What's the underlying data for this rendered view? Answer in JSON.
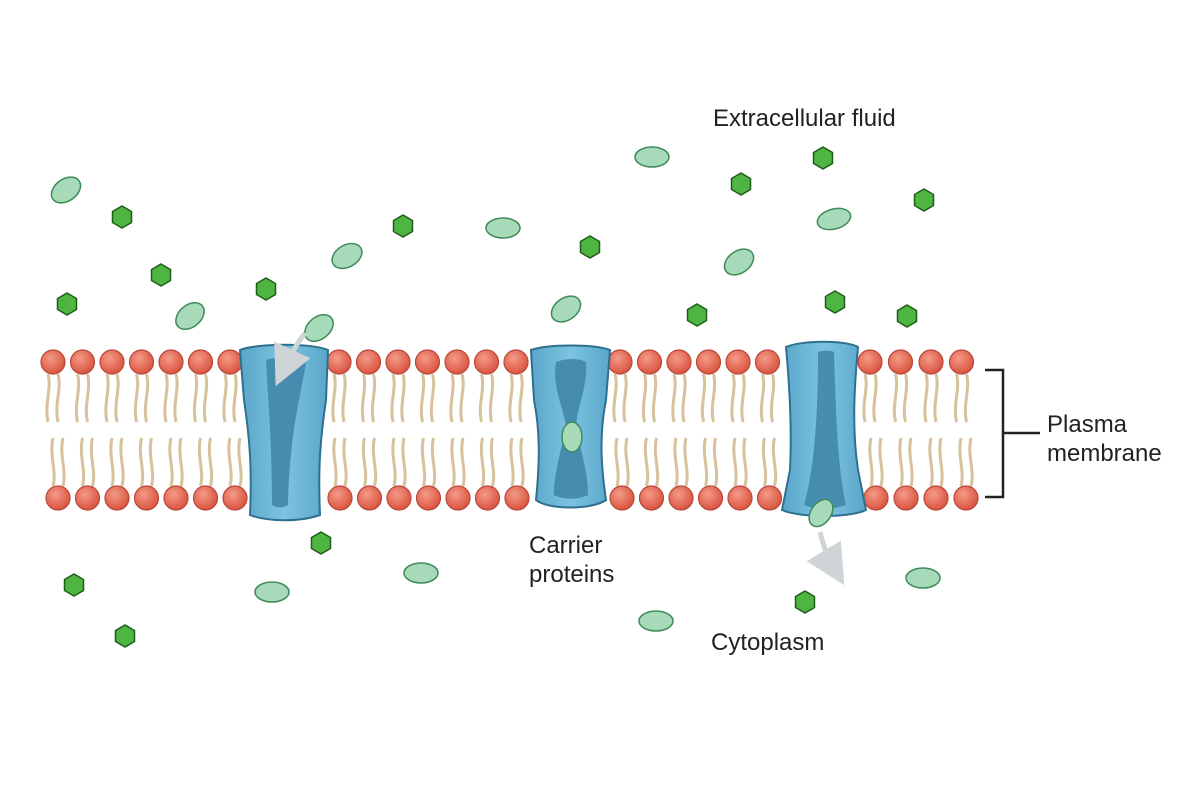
{
  "labels": {
    "extracellular": "Extracellular fluid",
    "carrier_line1": "Carrier",
    "carrier_line2": "proteins",
    "cytoplasm": "Cytoplasm",
    "plasma_line1": "Plasma",
    "plasma_line2": "membrane"
  },
  "colors": {
    "lipid_head": "#e46a57",
    "lipid_head_stroke": "#b9473a",
    "lipid_tail": "#d6c29b",
    "protein_fill": "#67b3d4",
    "protein_dark": "#3d84a6",
    "protein_stroke": "#2f6f8f",
    "solute_oval": "#a6dab8",
    "solute_oval_stroke": "#3e8a5a",
    "solute_hex": "#4fb542",
    "solute_hex_stroke": "#1f5e1a",
    "arrow": "#cfd4d6"
  },
  "icons": [
    "oval-solute-icon",
    "hexagon-solute-icon",
    "phospholipid-icon",
    "carrier-protein-icon",
    "arrow-icon",
    "bracket-icon"
  ]
}
